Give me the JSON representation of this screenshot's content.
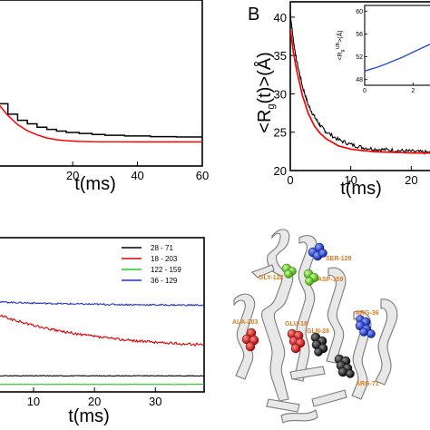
{
  "chart_data": [
    {
      "id": "panel-A",
      "type": "line",
      "panel_label": "",
      "xlabel": "t(ms)",
      "ylabel": "",
      "xlim": [
        -3,
        60
      ],
      "ylim": [
        18,
        42
      ],
      "x_ticks": [
        "20",
        "40",
        "60"
      ],
      "y_ticks": [],
      "series": [
        {
          "color": "#000000",
          "step": true,
          "points": [
            [
              -3,
              27
            ],
            [
              0,
              25.5
            ],
            [
              3,
              24.6
            ],
            [
              6,
              24.1
            ],
            [
              9,
              23.6
            ],
            [
              12,
              23.3
            ],
            [
              15,
              23.05
            ],
            [
              18,
              22.85
            ],
            [
              22,
              22.7
            ],
            [
              26,
              22.55
            ],
            [
              30,
              22.45
            ],
            [
              36,
              22.35
            ],
            [
              44,
              22.25
            ],
            [
              52,
              22.2
            ],
            [
              60,
              22.15
            ]
          ]
        },
        {
          "color": "#ff0000",
          "step": false,
          "points": [
            [
              -3,
              27
            ],
            [
              0,
              25.3
            ],
            [
              3,
              24
            ],
            [
              6,
              23.1
            ],
            [
              9,
              22.5
            ],
            [
              12,
              22.05
            ],
            [
              15,
              21.8
            ],
            [
              18,
              21.65
            ],
            [
              22,
              21.55
            ],
            [
              28,
              21.5
            ],
            [
              40,
              21.5
            ],
            [
              60,
              21.5
            ]
          ]
        }
      ]
    },
    {
      "id": "panel-B",
      "type": "line",
      "panel_label": "B",
      "xlabel": "t(ms)",
      "ylabel": "<R",
      "ylabel_sub": "g",
      "ylabel_tail": "(t)>(Å)",
      "xlim": [
        0,
        24
      ],
      "ylim": [
        20,
        42
      ],
      "x_ticks": [
        {
          "v": 0,
          "t": "0"
        },
        {
          "v": 10,
          "t": "10"
        },
        {
          "v": 20,
          "t": "20"
        }
      ],
      "y_ticks": [
        {
          "v": 20,
          "t": "20"
        },
        {
          "v": 25,
          "t": "25"
        },
        {
          "v": 30,
          "t": "30"
        },
        {
          "v": 35,
          "t": "35"
        },
        {
          "v": 40,
          "t": "40"
        }
      ],
      "series": [
        {
          "color": "#000000",
          "noisy": true,
          "points": [
            [
              0,
              40.5
            ],
            [
              0.5,
              37
            ],
            [
              1,
              34.5
            ],
            [
              2,
              31
            ],
            [
              3,
              28.5
            ],
            [
              4,
              27
            ],
            [
              5,
              25.8
            ],
            [
              6,
              25
            ],
            [
              8,
              24
            ],
            [
              10,
              23.4
            ],
            [
              12,
              23
            ],
            [
              14,
              22.8
            ],
            [
              16,
              22.7
            ],
            [
              18,
              22.6
            ],
            [
              20,
              22.5
            ],
            [
              22,
              22.4
            ],
            [
              24,
              22.3
            ]
          ]
        },
        {
          "color": "#ff0000",
          "noisy": false,
          "points": [
            [
              0,
              38.5
            ],
            [
              0.5,
              35.5
            ],
            [
              1,
              33.3
            ],
            [
              2,
              29.8
            ],
            [
              3,
              27.4
            ],
            [
              4,
              25.8
            ],
            [
              5,
              24.8
            ],
            [
              6,
              24.1
            ],
            [
              8,
              23.2
            ],
            [
              10,
              22.8
            ],
            [
              12,
              22.6
            ],
            [
              14,
              22.45
            ],
            [
              16,
              22.4
            ],
            [
              18,
              22.35
            ],
            [
              20,
              22.3
            ],
            [
              22,
              22.3
            ],
            [
              24,
              22.3
            ]
          ]
        }
      ],
      "inset": {
        "xlim": [
          0,
          3
        ],
        "ylim": [
          47,
          61
        ],
        "x_ticks": [
          {
            "v": 0,
            "t": "0"
          },
          {
            "v": 2,
            "t": "2"
          }
        ],
        "y_ticks": [
          {
            "v": 48,
            "t": "48"
          },
          {
            "v": 52,
            "t": "52"
          },
          {
            "v": 56,
            "t": "56"
          },
          {
            "v": 60,
            "t": "60"
          }
        ],
        "ylabel": "<R",
        "ylabel_sub": "g",
        "ylabel_sup": "UB",
        "ylabel_tail": ">(Å)",
        "series": [
          {
            "color": "#1f4fd6",
            "points": [
              [
                0,
                49.5
              ],
              [
                0.4,
                50
              ],
              [
                0.8,
                50.6
              ],
              [
                1.2,
                51.3
              ],
              [
                1.6,
                52
              ],
              [
                2,
                52.8
              ],
              [
                2.4,
                53.6
              ],
              [
                2.8,
                54.4
              ],
              [
                3,
                54.8
              ]
            ]
          }
        ]
      }
    },
    {
      "id": "panel-C",
      "type": "line",
      "panel_label": "",
      "xlabel": "t(ms)",
      "ylabel": "",
      "xlim": [
        4.2,
        38
      ],
      "ylim": [
        0,
        72
      ],
      "x_ticks": [
        {
          "v": 10,
          "t": "10"
        },
        {
          "v": 20,
          "t": "20"
        },
        {
          "v": 30,
          "t": "30"
        }
      ],
      "y_ticks": [],
      "legend_position": "top-right",
      "series": [
        {
          "name": "28 - 71",
          "color": "#000000",
          "level_start": 7.5,
          "level_end": 7.5,
          "noise": 0.15
        },
        {
          "name": "18 - 203",
          "color": "#e00000",
          "level_start": 36,
          "level_end": 22,
          "noise": 0.6
        },
        {
          "name": "122 - 159",
          "color": "#22cc22",
          "level_start": 3.5,
          "level_end": 3.5,
          "noise": 0.1
        },
        {
          "name": "36 - 129",
          "color": "#2233cc",
          "level_start": 42,
          "level_end": 40.5,
          "noise": 0.35
        }
      ]
    }
  ],
  "structure": {
    "labels": [
      {
        "text": "SER-129",
        "color": "#e07b20"
      },
      {
        "text": "GLY-122",
        "color": "#e07b20"
      },
      {
        "text": "ASP-159",
        "color": "#e07b20"
      },
      {
        "text": "ARG-36",
        "color": "#e07b20"
      },
      {
        "text": "ALA-203",
        "color": "#e07b20"
      },
      {
        "text": "GLU-18",
        "color": "#e07b20"
      },
      {
        "text": "GLN-28",
        "color": "#e07b20"
      },
      {
        "text": "ARG-71",
        "color": "#e07b20"
      }
    ]
  }
}
